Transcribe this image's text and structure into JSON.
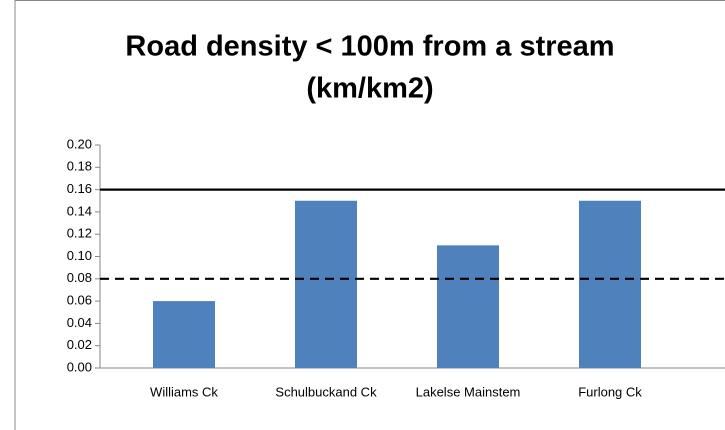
{
  "chart_data": {
    "type": "bar",
    "title": [
      "Road density < 100m from a stream",
      "(km/km2)"
    ],
    "categories": [
      "Williams Ck",
      "Schulbuckand Ck",
      "Lakelse Mainstem",
      "Furlong Ck"
    ],
    "values": [
      0.06,
      0.15,
      0.11,
      0.15
    ],
    "color": "#4f81bd",
    "ylim": [
      0,
      0.2
    ],
    "yticks": [
      {
        "value": 0,
        "label": "0.00"
      },
      {
        "value": 0.02,
        "label": "0.02"
      },
      {
        "value": 0.04,
        "label": "0.04"
      },
      {
        "value": 0.06,
        "label": "0.06"
      },
      {
        "value": 0.08,
        "label": "0.08"
      },
      {
        "value": 0.1,
        "label": "0.10"
      },
      {
        "value": 0.12,
        "label": "0.12"
      },
      {
        "value": 0.14,
        "label": "0.14"
      },
      {
        "value": 0.16,
        "label": "0.16"
      },
      {
        "value": 0.18,
        "label": "0.18"
      },
      {
        "value": 0.2,
        "label": "0.20"
      }
    ],
    "reference_lines": [
      {
        "value": 0.16,
        "style": "solid"
      },
      {
        "value": 0.08,
        "style": "dashed"
      }
    ],
    "grid": false
  }
}
